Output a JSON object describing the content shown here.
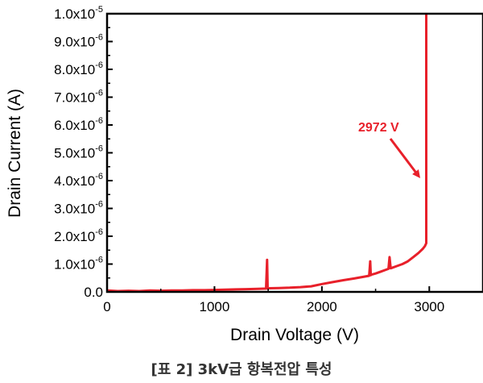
{
  "chart_data": {
    "type": "line",
    "xlabel": "Drain Voltage (V)",
    "ylabel": "Drain Current (A)",
    "xlim": [
      0,
      3500
    ],
    "ylim": [
      0,
      1e-05
    ],
    "x_ticks": [
      0,
      1000,
      2000,
      3000
    ],
    "x_tick_labels": [
      "0",
      "1000",
      "2000",
      "3000"
    ],
    "y_ticks": [
      0,
      1e-06,
      2e-06,
      3e-06,
      4e-06,
      5e-06,
      6e-06,
      7e-06,
      8e-06,
      9e-06,
      1e-05
    ],
    "y_tick_labels": [
      {
        "mant": "0.0",
        "exp": ""
      },
      {
        "mant": "1.0x10",
        "exp": "-6"
      },
      {
        "mant": "2.0x10",
        "exp": "-6"
      },
      {
        "mant": "3.0x10",
        "exp": "-6"
      },
      {
        "mant": "4.0x10",
        "exp": "-6"
      },
      {
        "mant": "5.0x10",
        "exp": "-6"
      },
      {
        "mant": "6.0x10",
        "exp": "-6"
      },
      {
        "mant": "7.0x10",
        "exp": "-6"
      },
      {
        "mant": "8.0x10",
        "exp": "-6"
      },
      {
        "mant": "9.0x10",
        "exp": "-6"
      },
      {
        "mant": "1.0x10",
        "exp": "-5"
      }
    ],
    "series": [
      {
        "color": "#e8202a",
        "x": [
          0,
          100,
          200,
          300,
          400,
          500,
          600,
          700,
          800,
          900,
          1000,
          1100,
          1200,
          1300,
          1400,
          1480,
          1490,
          1495,
          1500,
          1510,
          1600,
          1700,
          1800,
          1900,
          2000,
          2100,
          2200,
          2300,
          2400,
          2440,
          2450,
          2455,
          2460,
          2470,
          2500,
          2550,
          2600,
          2620,
          2630,
          2640,
          2650,
          2700,
          2750,
          2800,
          2850,
          2900,
          2940,
          2960,
          2972,
          2972
        ],
        "y": [
          5e-08,
          3e-08,
          4e-08,
          3e-08,
          5e-08,
          4e-08,
          5e-08,
          5e-08,
          6e-08,
          6e-08,
          7e-08,
          8e-08,
          9e-08,
          1e-07,
          1.1e-07,
          1.2e-07,
          1.15e-06,
          1.2e-07,
          1.3e-07,
          1.3e-07,
          1.4e-07,
          1.5e-07,
          1.7e-07,
          2e-07,
          2.8e-07,
          3.5e-07,
          4.2e-07,
          4.8e-07,
          5.5e-07,
          5.8e-07,
          1.1e-06,
          6e-07,
          6.2e-07,
          6.3e-07,
          6.6e-07,
          7.3e-07,
          8e-07,
          8.3e-07,
          1.25e-06,
          8.5e-07,
          8.6e-07,
          9.3e-07,
          1e-06,
          1.1e-06,
          1.25e-06,
          1.4e-06,
          1.55e-06,
          1.65e-06,
          1.75e-06,
          1e-05
        ]
      }
    ],
    "annotation": {
      "text": "2972 V",
      "color": "#e8202a",
      "x": 2972
    },
    "grid": false,
    "legend": "none"
  },
  "caption": "[표 2] 3kV급 항복전압 특성"
}
